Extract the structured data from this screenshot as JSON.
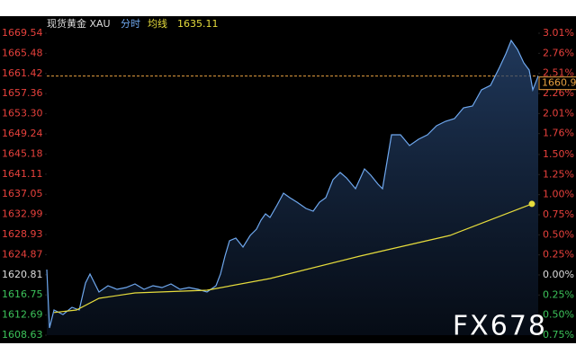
{
  "chart_data": {
    "type": "line",
    "title": "现货黄金 XAU",
    "watermark": "FX678",
    "xlim": [
      0,
      546
    ],
    "ylim": [
      1608.63,
      1669.54
    ],
    "yticks": [
      1669.54,
      1665.48,
      1661.42,
      1657.36,
      {
        "value": 1653.3,
        "label": "1653.30"
      },
      1649.24,
      1645.18,
      1641.11,
      1637.05,
      1632.99,
      1628.93,
      1624.87,
      1620.81,
      1616.75,
      1612.69,
      1608.63
    ],
    "y2lim": [
      -0.75,
      3.01
    ],
    "y2ticks": [
      {
        "value": 3.01,
        "label": "3.01%"
      },
      {
        "value": 2.76,
        "label": "2.76%"
      },
      {
        "value": 2.51,
        "label": "2.51%"
      },
      {
        "value": 2.26,
        "label": "2.26%"
      },
      {
        "value": 2.01,
        "label": "2.01%"
      },
      {
        "value": 1.76,
        "label": "1.76%"
      },
      {
        "value": 1.5,
        "label": "1.50%"
      },
      {
        "value": 1.25,
        "label": "1.25%"
      },
      {
        "value": 1.0,
        "label": "1.00%"
      },
      {
        "value": 0.75,
        "label": "0.75%"
      },
      {
        "value": 0.5,
        "label": "0.50%"
      },
      {
        "value": 0.25,
        "label": "0.25%"
      },
      {
        "value": 0,
        "label": "0.00%"
      },
      {
        "value": -0.25,
        "label": "0.25%"
      },
      {
        "value": -0.5,
        "label": "0.50%"
      },
      {
        "value": -0.75,
        "label": "0.75%"
      }
    ],
    "tick_colors": {
      "up": "#e8413c",
      "flat": "#dddddd",
      "down": "#3cc35a"
    },
    "last_price": 1660.9,
    "last_price_color": "#e8a040",
    "series": [
      {
        "name": "分时",
        "color": "#6fa8ef",
        "x": [
          0,
          3,
          8,
          18,
          28,
          36,
          43,
          48,
          53,
          58,
          68,
          78,
          88,
          98,
          108,
          118,
          128,
          138,
          148,
          158,
          168,
          178,
          188,
          193,
          198,
          203,
          210,
          218,
          226,
          233,
          238,
          243,
          248,
          256,
          263,
          270,
          278,
          288,
          296,
          303,
          310,
          318,
          326,
          333,
          343,
          353,
          360,
          368,
          373,
          378,
          383,
          393,
          403,
          413,
          423,
          433,
          443,
          453,
          463,
          473,
          483,
          493,
          503,
          510,
          516,
          523,
          530,
          536,
          540,
          546
        ],
        "values": [
          1621.86,
          1610.08,
          1613.71,
          1612.8,
          1614.25,
          1613.71,
          1619.14,
          1620.96,
          1619.14,
          1617.33,
          1618.6,
          1617.88,
          1618.24,
          1618.96,
          1617.88,
          1618.6,
          1618.24,
          1618.96,
          1617.88,
          1618.24,
          1617.88,
          1617.33,
          1618.6,
          1620.96,
          1624.58,
          1627.66,
          1628.21,
          1626.4,
          1628.75,
          1630.02,
          1631.83,
          1633.1,
          1632.38,
          1634.92,
          1637.27,
          1636.37,
          1635.46,
          1634.19,
          1633.65,
          1635.46,
          1636.37,
          1639.99,
          1641.44,
          1640.35,
          1638.18,
          1642.17,
          1640.9,
          1639.08,
          1638.18,
          1643.62,
          1649.06,
          1649.06,
          1646.88,
          1648.15,
          1649.06,
          1650.87,
          1651.77,
          1652.32,
          1654.49,
          1654.86,
          1658.12,
          1659.03,
          1662.65,
          1665.37,
          1668.09,
          1666.28,
          1663.56,
          1662.11,
          1658.12,
          1660.9
        ]
      },
      {
        "name": "均线",
        "color": "#e6dc3c",
        "x": [
          8,
          33,
          58,
          98,
          178,
          248,
          348,
          448,
          539
        ],
        "values": [
          1613.2,
          1613.71,
          1616.06,
          1617.15,
          1617.7,
          1620.05,
          1624.58,
          1628.75,
          1635.11
        ]
      }
    ]
  }
}
